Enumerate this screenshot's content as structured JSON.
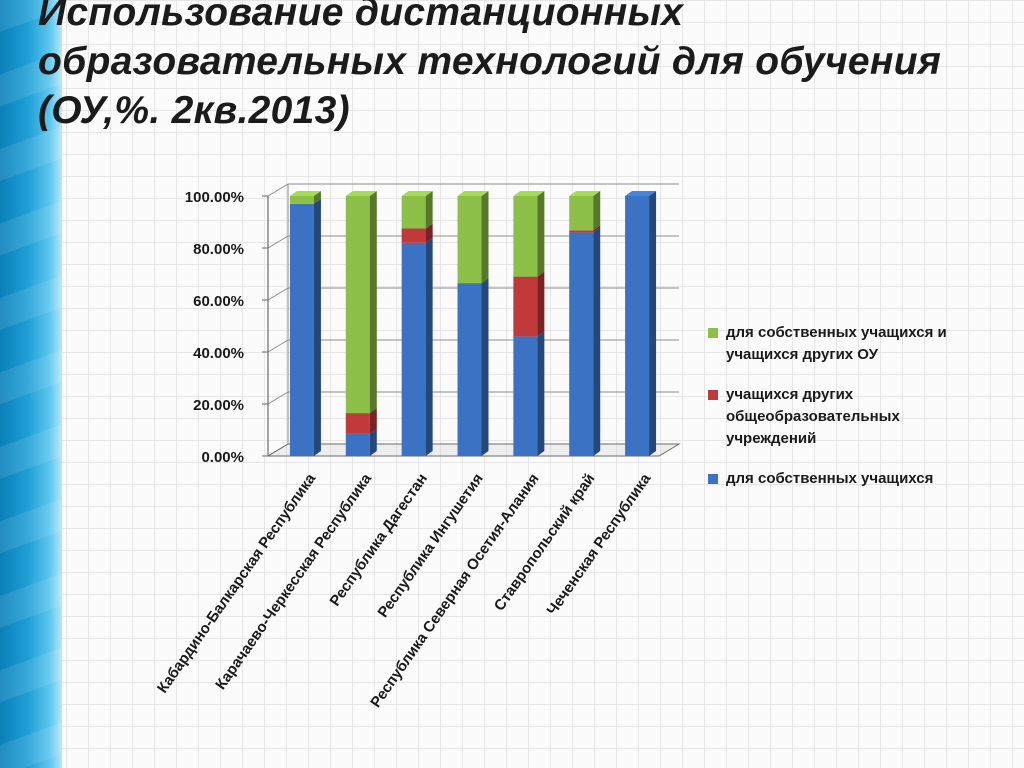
{
  "title_lines": [
    "Использование дистанционных",
    "образовательных технологий для обучения",
    "(ОУ,%. 2кв.2013)"
  ],
  "chart_data": {
    "type": "bar",
    "stacked": true,
    "categories": [
      "Кабардино-Балкарская Республика",
      "Карачаево-Черкесская Республика",
      "Республика Дагестан",
      "Республика Ингушетия",
      "Республика Северная Осетия-Алания",
      "Ставропольский край",
      "Чеченская Республика"
    ],
    "series": [
      {
        "name": "для собственных учащихся",
        "color": "#3c72c4",
        "values": [
          97,
          8.5,
          82,
          66.5,
          46,
          86,
          100
        ]
      },
      {
        "name": "учащихся других общеобразовательных учреждений",
        "color": "#c0393b",
        "values": [
          0,
          8,
          5.5,
          0,
          23,
          0.8,
          0
        ]
      },
      {
        "name": "для собственных учащихся и учащихся других ОУ",
        "color": "#8dc048",
        "values": [
          3,
          83.5,
          12.5,
          33.5,
          31,
          13.2,
          0
        ]
      }
    ],
    "legend_order": [
      2,
      1,
      0
    ],
    "legend_lines": [
      [
        "для собственных учащихся и",
        "учащихся других ОУ"
      ],
      [
        "учащихся других",
        "общеобразовательных",
        "учреждений"
      ],
      [
        "для собственных учащихся"
      ]
    ],
    "y_ticks": [
      "0.00%",
      "20.00%",
      "40.00%",
      "60.00%",
      "80.00%",
      "100.00%"
    ],
    "ylim": [
      0,
      100
    ],
    "grid": true,
    "legend_position": "right"
  }
}
